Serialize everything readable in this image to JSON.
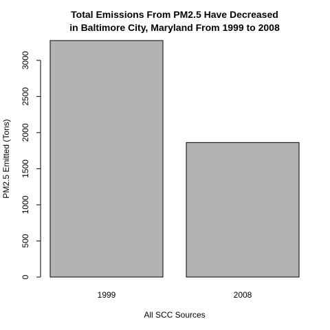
{
  "chart_data": {
    "type": "bar",
    "title_lines": [
      "Total Emissions From PM2.5 Have Decreased",
      "in Baltimore City, Maryland From 1999 to 2008"
    ],
    "categories": [
      "1999",
      "2008"
    ],
    "values": [
      3274,
      1862
    ],
    "xlabel": "All SCC Sources",
    "ylabel": "PM2.5 Emitted (Tons)",
    "ylim": [
      0,
      3274
    ],
    "yticks": [
      0,
      500,
      1000,
      1500,
      2000,
      2500,
      3000
    ],
    "grid": false,
    "legend": "none",
    "bar_color": "#b3b3b3",
    "bar_border_color": "#000000"
  }
}
